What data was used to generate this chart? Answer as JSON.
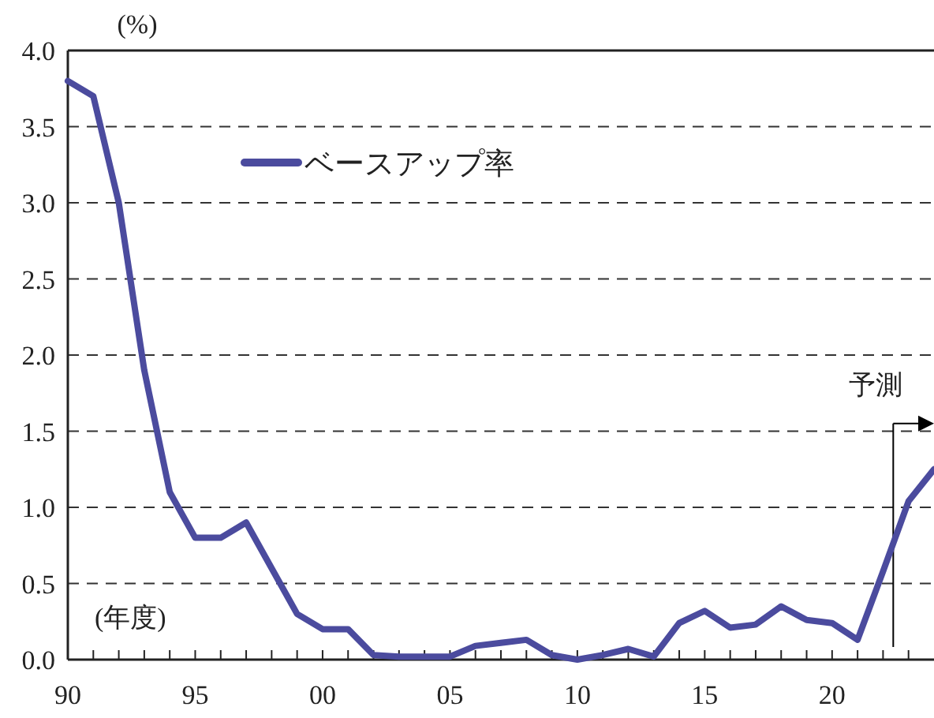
{
  "chart_data": {
    "type": "line",
    "ylabel": "(%)",
    "xlabel": "(年度)",
    "x": [
      1990,
      1991,
      1992,
      1993,
      1994,
      1995,
      1996,
      1997,
      1998,
      1999,
      2000,
      2001,
      2002,
      2003,
      2004,
      2005,
      2006,
      2007,
      2008,
      2009,
      2010,
      2011,
      2012,
      2013,
      2014,
      2015,
      2016,
      2017,
      2018,
      2019,
      2020,
      2021,
      2022,
      2023,
      2024
    ],
    "series": [
      {
        "name": "ベースアップ率",
        "color": "#4b4b9e",
        "values": [
          3.8,
          3.7,
          3.0,
          1.9,
          1.1,
          0.8,
          0.8,
          0.9,
          0.6,
          0.3,
          0.2,
          0.2,
          0.03,
          0.02,
          0.02,
          0.02,
          0.09,
          0.11,
          0.13,
          0.03,
          0.0,
          0.03,
          0.07,
          0.02,
          0.24,
          0.32,
          0.21,
          0.23,
          0.35,
          0.26,
          0.24,
          0.13,
          0.58,
          1.04,
          1.25
        ]
      }
    ],
    "xlim": [
      1990,
      2024
    ],
    "xticks": [
      {
        "value": 1990,
        "label": "90"
      },
      {
        "value": 1991,
        "label": null
      },
      {
        "value": 1992,
        "label": null
      },
      {
        "value": 1993,
        "label": null
      },
      {
        "value": 1994,
        "label": null
      },
      {
        "value": 1995,
        "label": "95"
      },
      {
        "value": 1996,
        "label": null
      },
      {
        "value": 1997,
        "label": null
      },
      {
        "value": 1998,
        "label": null
      },
      {
        "value": 1999,
        "label": null
      },
      {
        "value": 2000,
        "label": "00"
      },
      {
        "value": 2001,
        "label": null
      },
      {
        "value": 2002,
        "label": null
      },
      {
        "value": 2003,
        "label": null
      },
      {
        "value": 2004,
        "label": null
      },
      {
        "value": 2005,
        "label": "05"
      },
      {
        "value": 2006,
        "label": null
      },
      {
        "value": 2007,
        "label": null
      },
      {
        "value": 2008,
        "label": null
      },
      {
        "value": 2009,
        "label": null
      },
      {
        "value": 2010,
        "label": "10"
      },
      {
        "value": 2011,
        "label": null
      },
      {
        "value": 2012,
        "label": null
      },
      {
        "value": 2013,
        "label": null
      },
      {
        "value": 2014,
        "label": null
      },
      {
        "value": 2015,
        "label": "15"
      },
      {
        "value": 2016,
        "label": null
      },
      {
        "value": 2017,
        "label": null
      },
      {
        "value": 2018,
        "label": null
      },
      {
        "value": 2019,
        "label": null
      },
      {
        "value": 2020,
        "label": "20"
      },
      {
        "value": 2021,
        "label": null
      },
      {
        "value": 2022,
        "label": null
      },
      {
        "value": 2023,
        "label": null
      }
    ],
    "ylim": [
      0,
      4
    ],
    "yticks": [
      {
        "value": 0,
        "label": "0.0"
      },
      {
        "value": 0.5,
        "label": "0.5"
      },
      {
        "value": 1,
        "label": "1.0"
      },
      {
        "value": 1.5,
        "label": "1.5"
      },
      {
        "value": 2,
        "label": "2.0"
      },
      {
        "value": 2.5,
        "label": "2.5"
      },
      {
        "value": 3,
        "label": "3.0"
      },
      {
        "value": 3.5,
        "label": "3.5"
      },
      {
        "value": 4,
        "label": "4.0"
      }
    ],
    "grid": "y",
    "legend": "top left",
    "line_style": "solid",
    "marker": "none",
    "ref_lines": [
      {
        "axis": "x",
        "value": 2022.4,
        "label": "予測",
        "line_style": "solid",
        "color": "#000000"
      }
    ]
  }
}
